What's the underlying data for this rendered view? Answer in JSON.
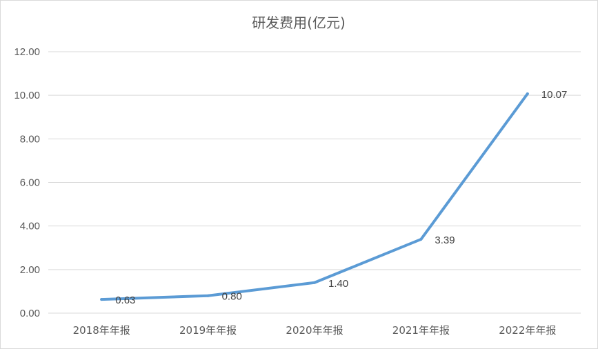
{
  "chart_data": {
    "type": "line",
    "title": "研发费用(亿元)",
    "categories": [
      "2018年年报",
      "2019年年报",
      "2020年年报",
      "2021年年报",
      "2022年年报"
    ],
    "series": [
      {
        "values": [
          0.63,
          0.8,
          1.4,
          3.39,
          10.07
        ]
      }
    ],
    "data_labels": [
      "0.63",
      "0.80",
      "1.40",
      "3.39",
      "10.07"
    ],
    "yticks": [
      "0.00",
      "2.00",
      "4.00",
      "6.00",
      "8.00",
      "10.00",
      "12.00"
    ],
    "ylim": [
      0,
      12
    ],
    "grid": true,
    "legend": "none",
    "line_color": "#5b9bd5"
  }
}
